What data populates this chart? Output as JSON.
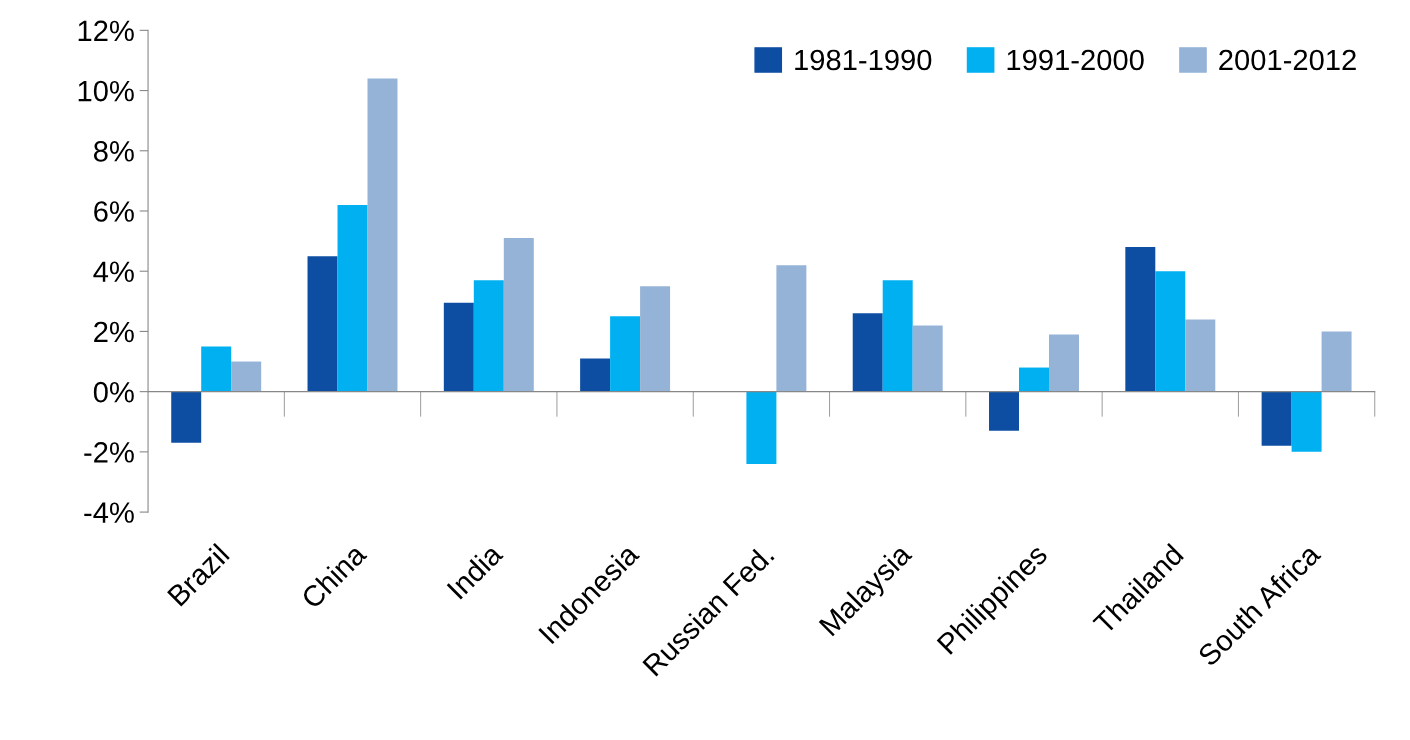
{
  "chart_data": {
    "type": "bar",
    "categories": [
      "Brazil",
      "China",
      "India",
      "Indonesia",
      "Russian Fed.",
      "Malaysia",
      "Philippines",
      "Thailand",
      "South Africa"
    ],
    "series": [
      {
        "name": "1981-1990",
        "color": "#0d4ea3",
        "values": [
          -1.7,
          4.5,
          2.95,
          1.1,
          null,
          2.6,
          -1.3,
          4.8,
          -1.8
        ]
      },
      {
        "name": "1991-2000",
        "color": "#00b0f0",
        "values": [
          1.5,
          6.2,
          3.7,
          2.5,
          -2.4,
          3.7,
          0.8,
          4.0,
          -2.0
        ]
      },
      {
        "name": "2001-2012",
        "color": "#95b3d7",
        "values": [
          1.0,
          10.4,
          5.1,
          3.5,
          4.2,
          2.2,
          1.9,
          2.4,
          2.0
        ]
      }
    ],
    "ylim": [
      -4,
      12
    ],
    "yticks": [
      {
        "value": -4,
        "label": "-4%"
      },
      {
        "value": -2,
        "label": "-2%"
      },
      {
        "value": 0,
        "label": "0%"
      },
      {
        "value": 2,
        "label": "2%"
      },
      {
        "value": 4,
        "label": "4%"
      },
      {
        "value": 6,
        "label": "6%"
      },
      {
        "value": 8,
        "label": "8%"
      },
      {
        "value": 10,
        "label": "10%"
      },
      {
        "value": 12,
        "label": "12%"
      }
    ],
    "legend": "top right"
  }
}
